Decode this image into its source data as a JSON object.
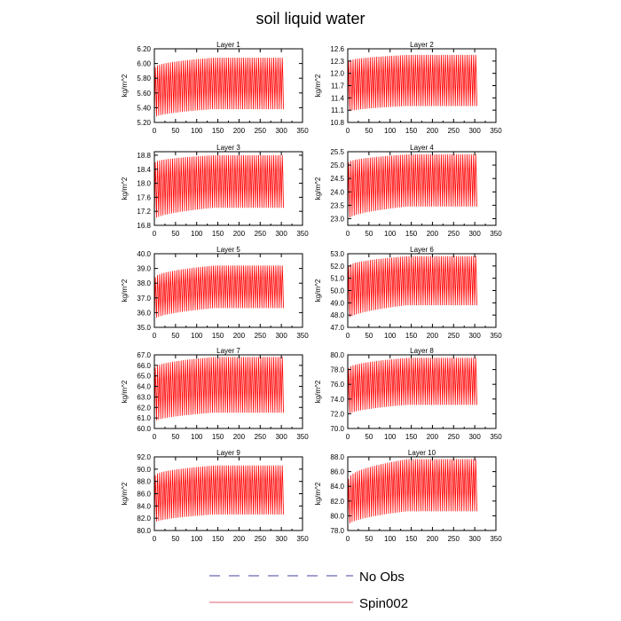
{
  "title": "soil liquid water",
  "legend": {
    "items": [
      {
        "label": "No Obs",
        "color": "#4040a0",
        "dash": true
      },
      {
        "label": "Spin002",
        "color": "#e06070",
        "dash": false
      }
    ]
  },
  "chart_data": [
    {
      "type": "line",
      "title": "Layer 1",
      "ylabel": "kg/m^2",
      "xlim": [
        0,
        350
      ],
      "ylim": [
        5.2,
        6.2
      ],
      "xticks": [
        "0",
        "50",
        "100",
        "150",
        "200",
        "250",
        "300",
        "350"
      ],
      "yticks": [
        "5.20",
        "5.40",
        "5.60",
        "5.80",
        "6.00",
        "6.20"
      ],
      "series": [
        {
          "name": "Spin002",
          "color": "#ff0000",
          "x_range": [
            0,
            305
          ],
          "upper": [
            5.95,
            6.08
          ],
          "lower": [
            5.26,
            5.38
          ],
          "cycles": 60
        }
      ]
    },
    {
      "type": "line",
      "title": "Layer 2",
      "ylabel": "kg/m^2",
      "xlim": [
        0,
        350
      ],
      "ylim": [
        10.8,
        12.6
      ],
      "xticks": [
        "0",
        "50",
        "100",
        "150",
        "200",
        "250",
        "300",
        "350"
      ],
      "yticks": [
        "10.8",
        "11.1",
        "11.4",
        "11.7",
        "12.0",
        "12.3",
        "12.6"
      ],
      "series": [
        {
          "name": "Spin002",
          "color": "#ff0000",
          "x_range": [
            0,
            305
          ],
          "upper": [
            12.3,
            12.45
          ],
          "lower": [
            11.05,
            11.2
          ],
          "cycles": 60
        }
      ]
    },
    {
      "type": "line",
      "title": "Layer 3",
      "ylabel": "kg/m^2",
      "xlim": [
        0,
        350
      ],
      "ylim": [
        16.8,
        18.9
      ],
      "xticks": [
        "0",
        "50",
        "100",
        "150",
        "200",
        "250",
        "300",
        "350"
      ],
      "yticks": [
        "16.8",
        "17.2",
        "17.6",
        "18.0",
        "18.4",
        "18.8"
      ],
      "series": [
        {
          "name": "Spin002",
          "color": "#ff0000",
          "x_range": [
            0,
            305
          ],
          "upper": [
            18.6,
            18.8
          ],
          "lower": [
            16.95,
            17.3
          ],
          "cycles": 60
        }
      ]
    },
    {
      "type": "line",
      "title": "Layer 4",
      "ylabel": "kg/m^2",
      "xlim": [
        0,
        350
      ],
      "ylim": [
        22.75,
        25.5
      ],
      "xticks": [
        "0",
        "50",
        "100",
        "150",
        "200",
        "250",
        "300",
        "350"
      ],
      "yticks": [
        "23.0",
        "23.5",
        "24.0",
        "24.5",
        "25.0",
        "25.5"
      ],
      "series": [
        {
          "name": "Spin002",
          "color": "#ff0000",
          "x_range": [
            0,
            305
          ],
          "upper": [
            25.1,
            25.4
          ],
          "lower": [
            22.95,
            23.45
          ],
          "cycles": 60
        }
      ]
    },
    {
      "type": "line",
      "title": "Layer 5",
      "ylabel": "kg/m^2",
      "xlim": [
        0,
        350
      ],
      "ylim": [
        35.0,
        40.0
      ],
      "xticks": [
        "0",
        "50",
        "100",
        "150",
        "200",
        "250",
        "300",
        "350"
      ],
      "yticks": [
        "35.0",
        "36.0",
        "37.0",
        "38.0",
        "39.0",
        "40.0"
      ],
      "series": [
        {
          "name": "Spin002",
          "color": "#ff0000",
          "x_range": [
            0,
            305
          ],
          "upper": [
            38.4,
            39.2
          ],
          "lower": [
            35.5,
            36.3
          ],
          "cycles": 60
        }
      ]
    },
    {
      "type": "line",
      "title": "Layer 6",
      "ylabel": "kg/m^2",
      "xlim": [
        0,
        350
      ],
      "ylim": [
        47.0,
        53.0
      ],
      "xticks": [
        "0",
        "50",
        "100",
        "150",
        "200",
        "250",
        "300",
        "350"
      ],
      "yticks": [
        "47.0",
        "48.0",
        "49.0",
        "50.0",
        "51.0",
        "52.0",
        "53.0"
      ],
      "series": [
        {
          "name": "Spin002",
          "color": "#ff0000",
          "x_range": [
            0,
            305
          ],
          "upper": [
            52.0,
            52.8
          ],
          "lower": [
            47.6,
            48.8
          ],
          "cycles": 60
        }
      ]
    },
    {
      "type": "line",
      "title": "Layer 7",
      "ylabel": "kg/m^2",
      "xlim": [
        0,
        350
      ],
      "ylim": [
        60.0,
        67.0
      ],
      "xticks": [
        "0",
        "50",
        "100",
        "150",
        "200",
        "250",
        "300",
        "350"
      ],
      "yticks": [
        "60.0",
        "61.0",
        "62.0",
        "63.0",
        "64.0",
        "65.0",
        "66.0",
        "67.0"
      ],
      "series": [
        {
          "name": "Spin002",
          "color": "#ff0000",
          "x_range": [
            0,
            305
          ],
          "upper": [
            65.8,
            66.8
          ],
          "lower": [
            60.6,
            61.5
          ],
          "cycles": 60
        }
      ]
    },
    {
      "type": "line",
      "title": "Layer 8",
      "ylabel": "kg/m^2",
      "xlim": [
        0,
        350
      ],
      "ylim": [
        70.0,
        80.0
      ],
      "xticks": [
        "0",
        "50",
        "100",
        "150",
        "200",
        "250",
        "300",
        "350"
      ],
      "yticks": [
        "70.0",
        "72.0",
        "74.0",
        "76.0",
        "78.0",
        "80.0"
      ],
      "series": [
        {
          "name": "Spin002",
          "color": "#ff0000",
          "x_range": [
            0,
            305
          ],
          "upper": [
            78.2,
            79.6
          ],
          "lower": [
            71.8,
            73.2
          ],
          "cycles": 60
        }
      ]
    },
    {
      "type": "line",
      "title": "Layer 9",
      "ylabel": "kg/m^2",
      "xlim": [
        0,
        350
      ],
      "ylim": [
        80.0,
        92.0
      ],
      "xticks": [
        "0",
        "50",
        "100",
        "150",
        "200",
        "250",
        "300",
        "350"
      ],
      "yticks": [
        "80.0",
        "82.0",
        "84.0",
        "86.0",
        "88.0",
        "90.0",
        "92.0"
      ],
      "series": [
        {
          "name": "Spin002",
          "color": "#ff0000",
          "x_range": [
            0,
            305
          ],
          "upper": [
            89.0,
            90.6
          ],
          "lower": [
            81.2,
            82.6
          ],
          "cycles": 60
        }
      ]
    },
    {
      "type": "line",
      "title": "Layer 10",
      "ylabel": "kg/m^2",
      "xlim": [
        0,
        350
      ],
      "ylim": [
        78.0,
        88.0
      ],
      "xticks": [
        "0",
        "50",
        "100",
        "150",
        "200",
        "250",
        "300",
        "350"
      ],
      "yticks": [
        "78.0",
        "80.0",
        "82.0",
        "84.0",
        "86.0",
        "88.0"
      ],
      "series": [
        {
          "name": "Spin002",
          "color": "#ff0000",
          "x_range": [
            0,
            305
          ],
          "upper": [
            85.0,
            87.7
          ],
          "lower": [
            78.6,
            80.6
          ],
          "cycles": 60
        }
      ]
    }
  ]
}
